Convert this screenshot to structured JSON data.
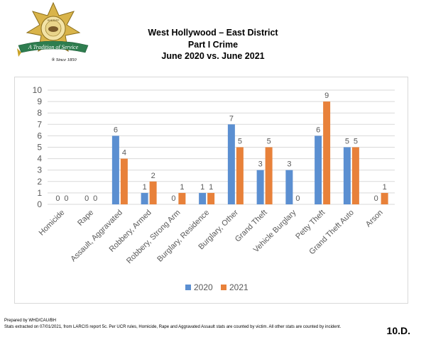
{
  "header": {
    "badge_motto": "A Tradition of Service",
    "badge_since": "® Since 1850",
    "badge_ring_text": "SHERIFF",
    "title_line1": "West Hollywood – East District",
    "title_line2": "Part I Crime",
    "title_line3": "June 2020 vs. June 2021"
  },
  "footer": {
    "prepared_by": "Prepared by WHD/CAU/BH",
    "stats_note": "Stats extracted on 07/01/2021, from LARCIS report 5c. Per UCR rules, Homicide, Rape and Aggravated Assault stats are counted by victim. All other stats are counted by incident.",
    "page_label": "10.D."
  },
  "colors": {
    "series_2020": "#5b8fd1",
    "series_2021": "#e8813a",
    "gridline": "#d9d9d9",
    "axis_text": "#595959",
    "badge_green": "#2e7d4f",
    "badge_gold": "#c9a227"
  },
  "chart_data": {
    "type": "bar",
    "categories": [
      "Homicide",
      "Rape",
      "Assault, Aggravated",
      "Robbery, Armed",
      "Robbery, Strong Arm",
      "Burglary, Residence",
      "Burglary, Other",
      "Grand Theft",
      "Vehicle Burglary",
      "Petty Theft",
      "Grand Theft Auto",
      "Arson"
    ],
    "series": [
      {
        "name": "2020",
        "values": [
          0,
          0,
          6,
          1,
          0,
          1,
          7,
          3,
          3,
          6,
          5,
          0
        ]
      },
      {
        "name": "2021",
        "values": [
          0,
          0,
          4,
          2,
          1,
          1,
          5,
          5,
          0,
          9,
          5,
          1
        ]
      }
    ],
    "ylim": [
      0,
      10
    ],
    "yticks": [
      0,
      1,
      2,
      3,
      4,
      5,
      6,
      7,
      8,
      9,
      10
    ],
    "grid": true,
    "legend_position": "bottom"
  }
}
